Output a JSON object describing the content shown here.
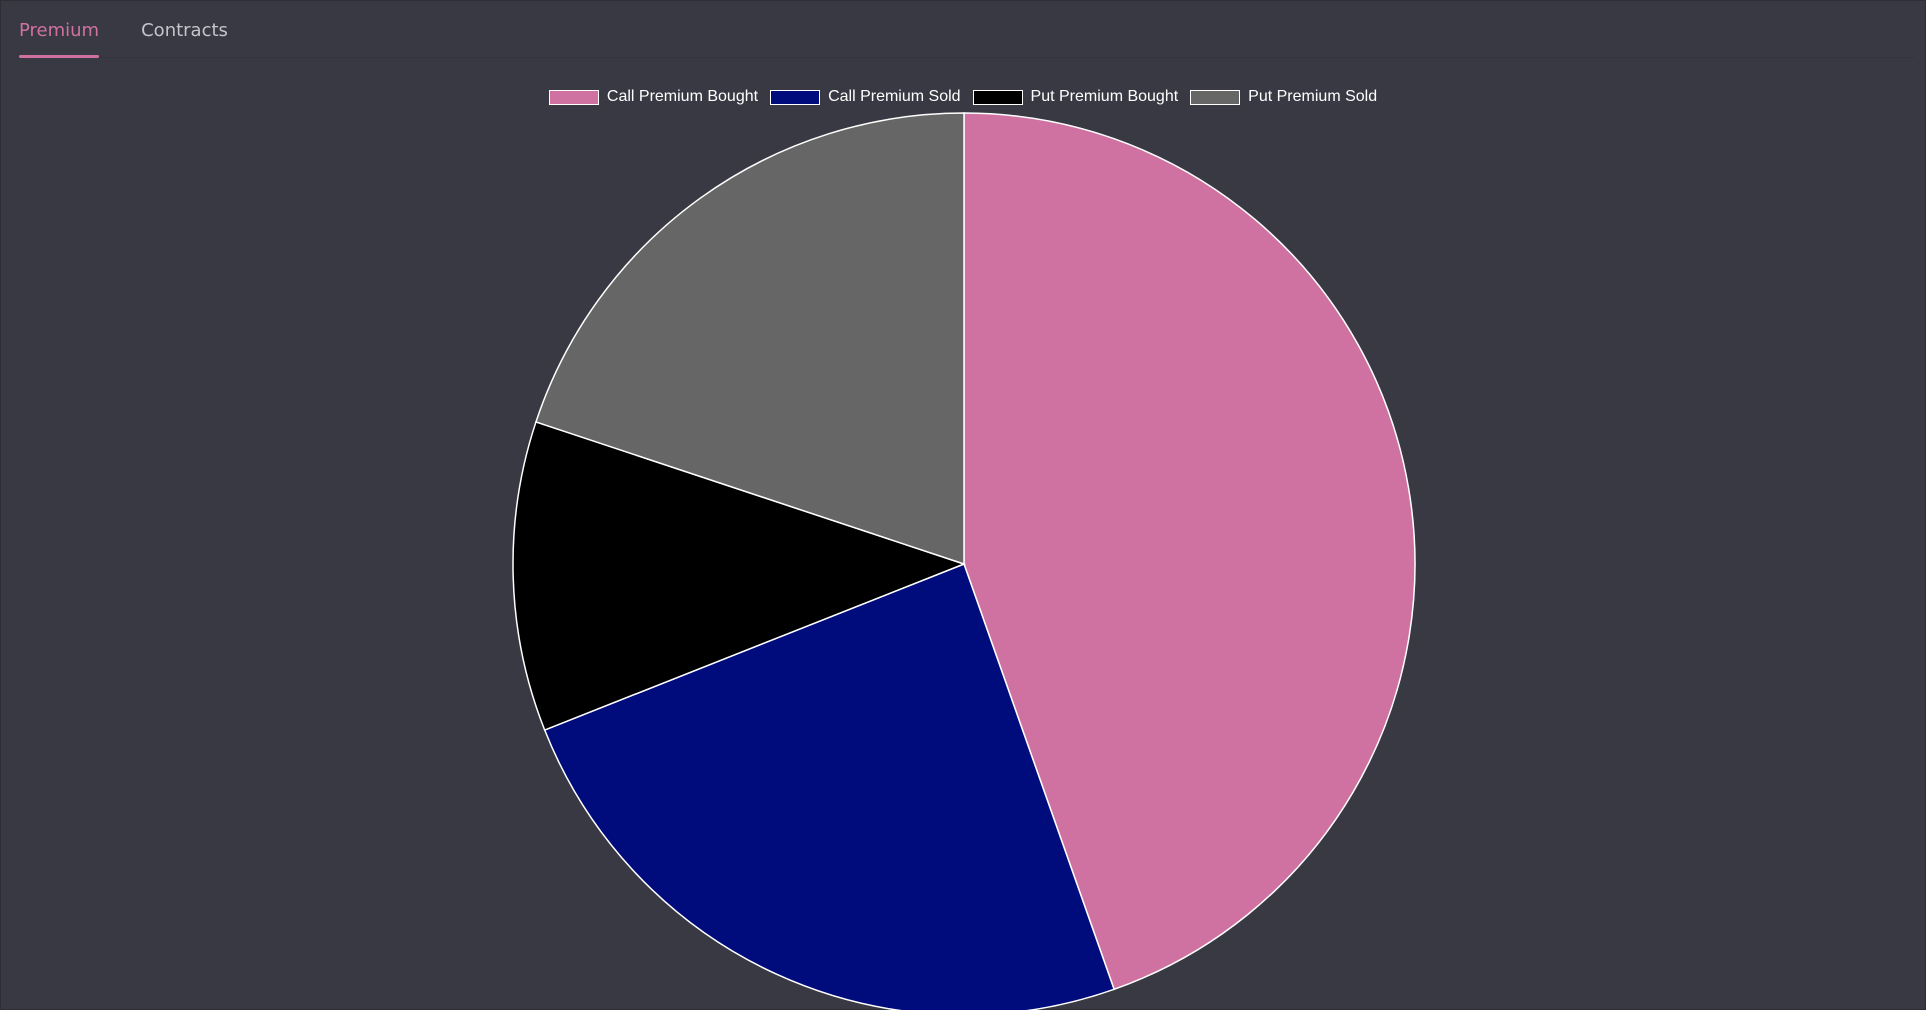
{
  "tabs": [
    {
      "label": "Premium",
      "active": true
    },
    {
      "label": "Contracts",
      "active": false
    }
  ],
  "chart_data": {
    "type": "pie",
    "title": "",
    "legend_position": "top",
    "slice_border_color": "#ffffff",
    "series": [
      {
        "name": "Call Premium Bought",
        "value": 44.6,
        "color": "#d072a1"
      },
      {
        "name": "Call Premium Sold",
        "value": 24.4,
        "color": "#000c7c"
      },
      {
        "name": "Put Premium Bought",
        "value": 11.1,
        "color": "#000000"
      },
      {
        "name": "Put Premium Sold",
        "value": 19.9,
        "color": "#666666"
      }
    ]
  }
}
